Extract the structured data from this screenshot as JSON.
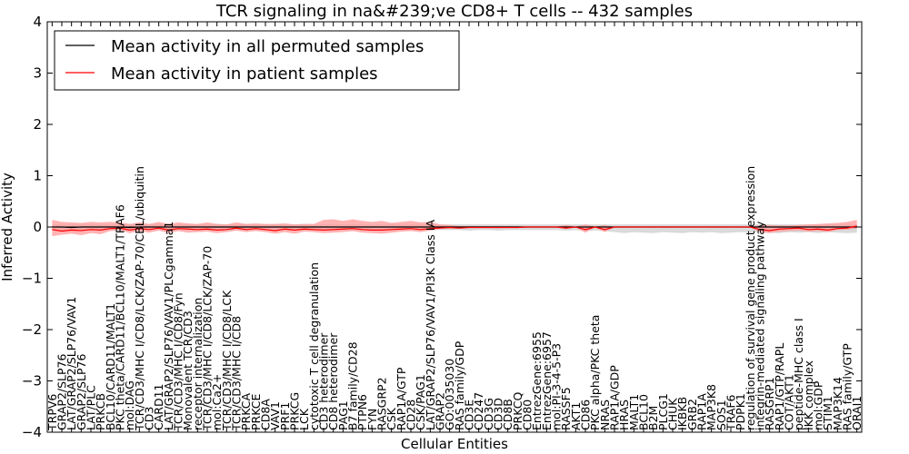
{
  "chart_data": {
    "type": "line",
    "title": "TCR signaling in na&#239;ve CD8+ T cells -- 432 samples",
    "xlabel": "Cellular Entities",
    "ylabel": "Inferred Activity",
    "ylim": [
      -4,
      4
    ],
    "yticks": [
      "4",
      "3",
      "2",
      "1",
      "0",
      "−1",
      "−2",
      "−3",
      "−4"
    ],
    "grid": false,
    "legend_position": "top-left",
    "colors": {
      "permuted_line": "#000000",
      "patient_line": "#ff0000",
      "patient_band": "#ff9a9a",
      "permuted_band": "#d3d3d3",
      "axes": "#000000"
    },
    "categories": [
      "TRPV6",
      "GRAP2/SLP76",
      "LAT/GRAP2/SLP76/VAV1",
      "GRAP2/SLP76",
      "LAT/PLC",
      "PRKCB",
      "BCL10/CARD11/MALT1",
      "PKC theta/CARD11/BCL10/MALT1/TRAF6",
      "mol:DAG",
      "TCR/CD3/MHC I/CD8/LCK/ZAP-70/CBL/ubiquitin",
      "CD3",
      "CARD11",
      "LAT/GRAP2/SLP76/VAV1/PLCgamma1",
      "TCR/CD3/MHC I/CD8/Fyn",
      "Monovalent TCR/CD3",
      "receptor internalization",
      "TCR/CD3/MHC I/CD8/LCK/ZAP-70",
      "mol:Ca2+",
      "TCR/CD3/MHC I/CD8/LCK",
      "TCR/CD3/MHC I/CD8",
      "PRKCA",
      "PRKCE",
      "CD8A",
      "VAV1",
      "PRF1",
      "PRKCG",
      "LCK",
      "cytotoxic T cell degranulation",
      "CD3 heterodimer",
      "CD8 heterodimer",
      "PAG1",
      "B7 family/CD28",
      "PTPN6",
      "FYN",
      "RASGRP2",
      "CSK",
      "RAP1A/GTP",
      "CD28",
      "CSK/PAG1",
      "LAT/GRAP2/SLP76/VAV1/PI3K Class IA",
      "GRAP2",
      "GO:0035030",
      "RAS family/GDP",
      "CD3E",
      "CD247",
      "CD3G",
      "CD3D",
      "CD8B",
      "PRKCQ",
      "CD80",
      "EntrezGene:6955",
      "EntrezGene:6957",
      "mol:PI-3-4-5-P3",
      "RASSF5",
      "AKT1",
      "CD86",
      "PKC alpha/PKC theta",
      "NRAS",
      "RAP1A/GDP",
      "HRAS",
      "MALT1",
      "BCL10",
      "B2M",
      "PLCG1",
      "CHUK",
      "IKBKB",
      "GRB2",
      "RAP1A",
      "MAP3K8",
      "SOS1",
      "TRAF6",
      "PDPK1",
      "regulation of survival gene product expression",
      "integrin-mediated signaling pathway",
      "RASGRP1",
      "RAP1/GTP/RAPL",
      "COT/AKT1",
      "peptide-MHC class I",
      "IKK complex",
      "mol:GDP",
      "STIM1",
      "MAP3K14",
      "RAS family/GTP",
      "ORAI1"
    ],
    "series": [
      {
        "name": "Mean activity in all permuted samples",
        "values": [
          0.0,
          0.0,
          -0.01,
          0.0,
          0.0,
          0.0,
          0.0,
          0.0,
          -0.01,
          0.0,
          0.0,
          0.0,
          0.0,
          0.0,
          0.0,
          0.0,
          0.0,
          0.0,
          0.0,
          0.0,
          0.0,
          0.0,
          0.0,
          0.0,
          0.0,
          0.0,
          0.0,
          0.0,
          0.0,
          0.0,
          0.0,
          0.0,
          0.0,
          0.0,
          0.0,
          0.0,
          0.0,
          0.0,
          0.0,
          0.0,
          0.0,
          0.0,
          0.0,
          0.0,
          0.0,
          0.0,
          0.0,
          0.0,
          0.0,
          0.0,
          0.0,
          0.0,
          0.0,
          0.0,
          0.0,
          0.0,
          0.0,
          0.0,
          0.0,
          0.0,
          0.0,
          0.0,
          0.0,
          0.0,
          0.0,
          0.0,
          0.0,
          0.0,
          0.0,
          0.0,
          0.0,
          0.0,
          0.0,
          0.0,
          0.0,
          0.0,
          0.0,
          0.0,
          0.0,
          0.0,
          0.0,
          0.0,
          0.0,
          0.0
        ]
      },
      {
        "name": "Mean activity in patient samples",
        "values": [
          -0.05,
          -0.08,
          -0.06,
          -0.07,
          -0.05,
          -0.06,
          -0.03,
          -0.02,
          -0.06,
          -0.03,
          -0.05,
          -0.02,
          -0.06,
          -0.03,
          -0.04,
          -0.05,
          -0.04,
          -0.06,
          -0.05,
          -0.02,
          -0.05,
          -0.03,
          -0.05,
          -0.07,
          -0.04,
          -0.06,
          -0.04,
          -0.05,
          -0.06,
          -0.05,
          -0.04,
          -0.03,
          -0.05,
          -0.06,
          -0.06,
          -0.05,
          -0.04,
          -0.03,
          -0.05,
          -0.03,
          -0.02,
          -0.01,
          -0.02,
          -0.01,
          -0.01,
          -0.01,
          -0.01,
          -0.01,
          -0.01,
          0.0,
          0.0,
          0.0,
          0.0,
          -0.02,
          0.0,
          -0.05,
          0.0,
          -0.05,
          0.0,
          0.0,
          0.0,
          0.0,
          0.0,
          0.0,
          0.0,
          0.0,
          0.0,
          0.0,
          0.0,
          0.0,
          0.0,
          0.0,
          0.0,
          -0.05,
          -0.07,
          -0.04,
          -0.03,
          -0.02,
          -0.05,
          -0.04,
          -0.06,
          -0.03,
          -0.02,
          0.02
        ]
      },
      {
        "name": "patient band lower",
        "values": [
          -0.18,
          -0.15,
          -0.13,
          -0.16,
          -0.12,
          -0.14,
          -0.08,
          -0.06,
          -0.12,
          -0.08,
          -0.11,
          -0.07,
          -0.12,
          -0.08,
          -0.11,
          -0.1,
          -0.09,
          -0.12,
          -0.1,
          -0.07,
          -0.1,
          -0.08,
          -0.1,
          -0.13,
          -0.1,
          -0.13,
          -0.09,
          -0.1,
          -0.12,
          -0.11,
          -0.1,
          -0.08,
          -0.11,
          -0.12,
          -0.13,
          -0.11,
          -0.09,
          -0.08,
          -0.1,
          -0.07,
          -0.04,
          -0.03,
          -0.03,
          -0.02,
          -0.02,
          -0.02,
          -0.02,
          -0.02,
          -0.02,
          -0.01,
          -0.01,
          -0.01,
          -0.01,
          -0.04,
          -0.01,
          -0.11,
          -0.01,
          -0.1,
          0.0,
          0.0,
          0.0,
          0.0,
          0.0,
          0.0,
          0.0,
          0.0,
          0.0,
          0.0,
          0.0,
          0.0,
          0.0,
          0.0,
          -0.01,
          -0.1,
          -0.12,
          -0.09,
          -0.08,
          -0.07,
          -0.09,
          -0.08,
          -0.1,
          -0.06,
          -0.05,
          -0.03
        ]
      },
      {
        "name": "patient band upper",
        "values": [
          0.14,
          0.1,
          0.09,
          0.08,
          0.1,
          0.09,
          0.1,
          0.09,
          0.06,
          0.09,
          0.06,
          0.1,
          0.06,
          0.09,
          0.07,
          0.06,
          0.09,
          0.06,
          0.05,
          0.09,
          0.06,
          0.07,
          0.06,
          0.06,
          0.07,
          0.05,
          0.06,
          0.06,
          0.14,
          0.15,
          0.12,
          0.15,
          0.12,
          0.1,
          0.12,
          0.08,
          0.1,
          0.12,
          0.09,
          0.1,
          0.05,
          0.04,
          0.02,
          0.02,
          0.02,
          0.02,
          0.02,
          0.02,
          0.02,
          0.01,
          0.01,
          0.01,
          0.01,
          0.04,
          0.01,
          0.05,
          0.01,
          0.04,
          0.0,
          0.0,
          0.0,
          0.0,
          0.0,
          0.0,
          0.0,
          0.0,
          0.0,
          0.0,
          0.0,
          0.0,
          0.0,
          0.0,
          0.01,
          0.03,
          0.04,
          0.03,
          0.03,
          0.04,
          0.05,
          0.06,
          0.07,
          0.08,
          0.1,
          0.14
        ]
      },
      {
        "name": "permuted band lower",
        "values": [
          -0.06,
          -0.07,
          -0.06,
          -0.08,
          -0.07,
          -0.07,
          -0.06,
          -0.07,
          -0.07,
          -0.06,
          -0.07,
          -0.06,
          -0.07,
          -0.07,
          -0.06,
          -0.07,
          -0.07,
          -0.07,
          -0.06,
          -0.07,
          -0.07,
          -0.06,
          -0.07,
          -0.07,
          -0.06,
          -0.07,
          -0.07,
          -0.07,
          -0.06,
          -0.07,
          -0.06,
          -0.07,
          -0.06,
          -0.07,
          -0.07,
          -0.06,
          -0.07,
          -0.06,
          -0.07,
          -0.06,
          -0.06,
          -0.06,
          -0.06,
          -0.07,
          -0.06,
          -0.06,
          -0.07,
          -0.06,
          -0.06,
          -0.06,
          -0.06,
          -0.06,
          -0.06,
          -0.07,
          -0.06,
          -0.08,
          -0.07,
          -0.08,
          -0.1,
          -0.12,
          -0.1,
          -0.11,
          -0.12,
          -0.1,
          -0.11,
          -0.12,
          -0.1,
          -0.11,
          -0.1,
          -0.12,
          -0.11,
          -0.1,
          -0.11,
          -0.1,
          -0.11,
          -0.12,
          -0.1,
          -0.11,
          -0.1,
          -0.12,
          -0.1,
          -0.11,
          -0.12,
          -0.11
        ]
      },
      {
        "name": "permuted band upper",
        "values": [
          0.05,
          0.06,
          0.05,
          0.06,
          0.05,
          0.06,
          0.05,
          0.05,
          0.06,
          0.05,
          0.05,
          0.06,
          0.05,
          0.05,
          0.06,
          0.05,
          0.05,
          0.06,
          0.05,
          0.05,
          0.06,
          0.05,
          0.05,
          0.06,
          0.05,
          0.05,
          0.06,
          0.05,
          0.05,
          0.06,
          0.05,
          0.05,
          0.06,
          0.05,
          0.05,
          0.06,
          0.05,
          0.05,
          0.06,
          0.05,
          0.05,
          0.05,
          0.05,
          0.05,
          0.05,
          0.05,
          0.05,
          0.05,
          0.05,
          0.05,
          0.05,
          0.05,
          0.05,
          0.05,
          0.05,
          0.05,
          0.05,
          0.05,
          0.05,
          0.05,
          0.05,
          0.05,
          0.05,
          0.05,
          0.05,
          0.05,
          0.05,
          0.05,
          0.05,
          0.05,
          0.05,
          0.05,
          0.05,
          0.05,
          0.05,
          0.05,
          0.05,
          0.05,
          0.05,
          0.05,
          0.05,
          0.05,
          0.05,
          0.05
        ]
      }
    ]
  }
}
